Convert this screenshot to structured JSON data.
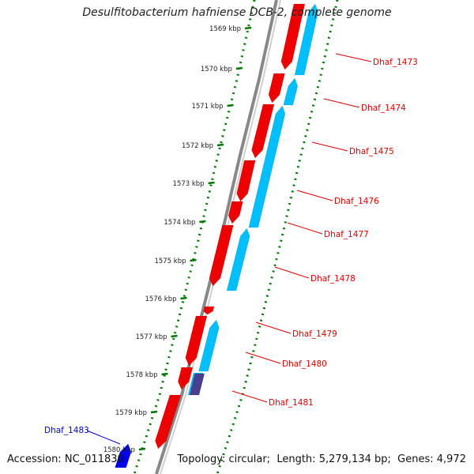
{
  "title": "Desulfitobacterium hafniense DCB-2, complete genome",
  "footer": {
    "accession_label": "Accession:",
    "accession": "NC_011830",
    "topology_label": "Topology:",
    "topology": "circular",
    "length_label": "Length:",
    "length": "5,279,134 bp",
    "genes_label": "Genes:",
    "genes": "4,972"
  },
  "colors": {
    "forward_cds": "#ee0000",
    "reverse_cds": "#00bfff",
    "other_feature": "#4a3f8f",
    "selected_feature": "#0000ee",
    "backbone": "#888888",
    "tick_marks": "#007700",
    "tick_label": "#222222",
    "callout": "#dd0000",
    "selected_callout": "#0000cc"
  },
  "ticks": [
    "1569 kbp",
    "1570 kbp",
    "1571 kbp",
    "1572 kbp",
    "1573 kbp",
    "1574 kbp",
    "1575 kbp",
    "1576 kbp",
    "1577 kbp",
    "1578 kbp",
    "1579 kbp",
    "1580 kbp"
  ],
  "gene_labels": [
    {
      "name": "Dhaf_1473",
      "color": "callout"
    },
    {
      "name": "Dhaf_1474",
      "color": "callout"
    },
    {
      "name": "Dhaf_1475",
      "color": "callout"
    },
    {
      "name": "Dhaf_1476",
      "color": "callout"
    },
    {
      "name": "Dhaf_1477",
      "color": "callout"
    },
    {
      "name": "Dhaf_1478",
      "color": "callout"
    },
    {
      "name": "Dhaf_1479",
      "color": "callout"
    },
    {
      "name": "Dhaf_1480",
      "color": "callout"
    },
    {
      "name": "Dhaf_1481",
      "color": "callout"
    },
    {
      "name": "Dhaf_1483",
      "color": "selected_callout"
    }
  ],
  "features": [
    {
      "strand": "forward",
      "color": "forward_cds"
    },
    {
      "strand": "forward",
      "color": "forward_cds"
    },
    {
      "strand": "forward",
      "color": "forward_cds"
    },
    {
      "strand": "forward",
      "color": "forward_cds"
    },
    {
      "strand": "forward",
      "color": "forward_cds"
    },
    {
      "strand": "forward",
      "color": "forward_cds"
    },
    {
      "strand": "forward",
      "color": "forward_cds"
    },
    {
      "strand": "forward",
      "color": "forward_cds"
    },
    {
      "strand": "forward",
      "color": "forward_cds"
    },
    {
      "strand": "forward",
      "color": "forward_cds"
    },
    {
      "strand": "reverse",
      "color": "reverse_cds"
    },
    {
      "strand": "reverse",
      "color": "reverse_cds"
    },
    {
      "strand": "reverse",
      "color": "reverse_cds"
    },
    {
      "strand": "reverse",
      "color": "reverse_cds"
    },
    {
      "strand": "reverse",
      "color": "reverse_cds"
    },
    {
      "strand": "reverse",
      "color": "reverse_cds"
    },
    {
      "strand": "other",
      "color": "other_feature"
    },
    {
      "strand": "selected",
      "color": "selected_feature"
    }
  ]
}
